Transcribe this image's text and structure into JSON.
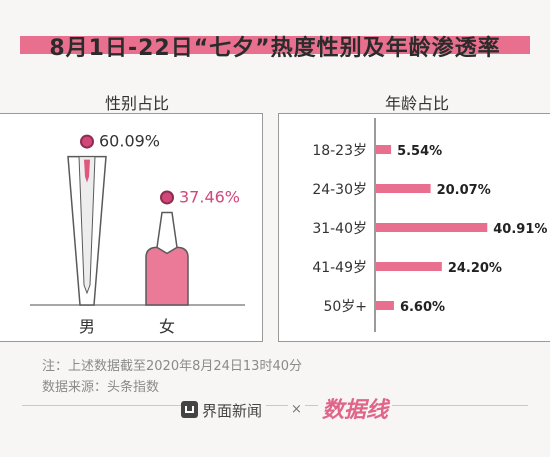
{
  "header": {
    "title": "8月1日-22日“七夕”热度性别及年龄渗透率"
  },
  "gender_panel": {
    "title": "性别占比"
  },
  "age_panel": {
    "title": "年龄占比"
  },
  "notes": {
    "line1": "注：上述数据截至2020年8月24日13时40分",
    "line2": "数据来源：头条指数"
  },
  "footer": {
    "brand": "界面新闻",
    "separator": "×",
    "partner": "数据线"
  },
  "colors": {
    "accent": "#e8708e",
    "value_pink": "#d1477a",
    "text": "#333333"
  },
  "chart_data": [
    {
      "type": "bar",
      "title": "性别占比",
      "categories": [
        "男",
        "女"
      ],
      "values": [
        60.09,
        37.46
      ],
      "value_labels": [
        "60.09%",
        "37.46%"
      ]
    },
    {
      "type": "bar",
      "title": "年龄占比",
      "categories": [
        "18-23岁",
        "24-30岁",
        "31-40岁",
        "41-49岁",
        "50岁+"
      ],
      "values": [
        5.54,
        20.07,
        40.91,
        24.2,
        6.6
      ],
      "value_labels": [
        "5.54%",
        "20.07%",
        "40.91%",
        "24.20%",
        "6.60%"
      ]
    }
  ]
}
